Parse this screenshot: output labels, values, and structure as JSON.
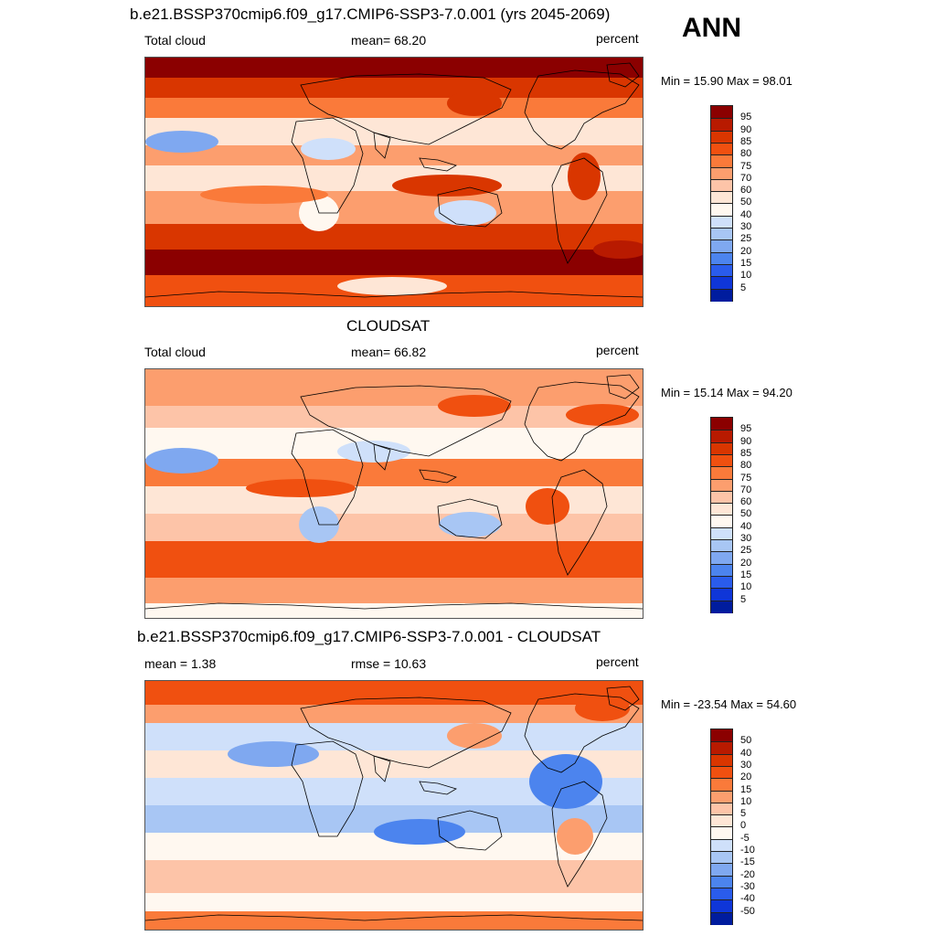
{
  "season": "ANN",
  "panels": [
    {
      "title": "b.e21.BSSP370cmip6.f09_g17.CMIP6-SSP3-7.0.001 (yrs 2045-2069)",
      "left_label": "Total cloud",
      "center_label": "mean=  68.20",
      "units": "percent",
      "minmax": "Min =  15.90 Max =  98.01",
      "field": "model"
    },
    {
      "title": "CLOUDSAT",
      "left_label": "Total cloud",
      "center_label": "mean=  66.82",
      "units": "percent",
      "minmax": "Min =  15.14 Max =  94.20",
      "field": "obs"
    },
    {
      "title": "b.e21.BSSP370cmip6.f09_g17.CMIP6-SSP3-7.0.001 - CLOUDSAT",
      "left_label": "mean =   1.38",
      "center_label": "rmse =  10.63",
      "units": "percent",
      "minmax": "Min = -23.54 Max =  54.60",
      "field": "diff"
    }
  ],
  "colorbars": {
    "abs": {
      "labels": [
        "95",
        "90",
        "85",
        "80",
        "75",
        "70",
        "60",
        "50",
        "40",
        "30",
        "25",
        "20",
        "15",
        "10",
        "5"
      ],
      "colors": [
        "#8b0000",
        "#b81a00",
        "#d93600",
        "#f05010",
        "#fa7a3a",
        "#fc9e6e",
        "#fdc4a8",
        "#fee6d6",
        "#fff8f0",
        "#cfe0fa",
        "#a8c6f4",
        "#7fa8f0",
        "#4c84ee",
        "#2a5cec",
        "#0f36d8",
        "#001c9e"
      ]
    },
    "diff": {
      "labels": [
        "50",
        "40",
        "30",
        "20",
        "15",
        "10",
        "5",
        "0",
        "-5",
        "-10",
        "-15",
        "-20",
        "-30",
        "-40",
        "-50"
      ],
      "colors": [
        "#8b0000",
        "#b81a00",
        "#d93600",
        "#f05010",
        "#fa7a3a",
        "#fc9e6e",
        "#fdc4a8",
        "#fee6d6",
        "#fff8f0",
        "#cfe0fa",
        "#a8c6f4",
        "#7fa8f0",
        "#4c84ee",
        "#2a5cec",
        "#0f36d8",
        "#001c9e"
      ]
    }
  }
}
